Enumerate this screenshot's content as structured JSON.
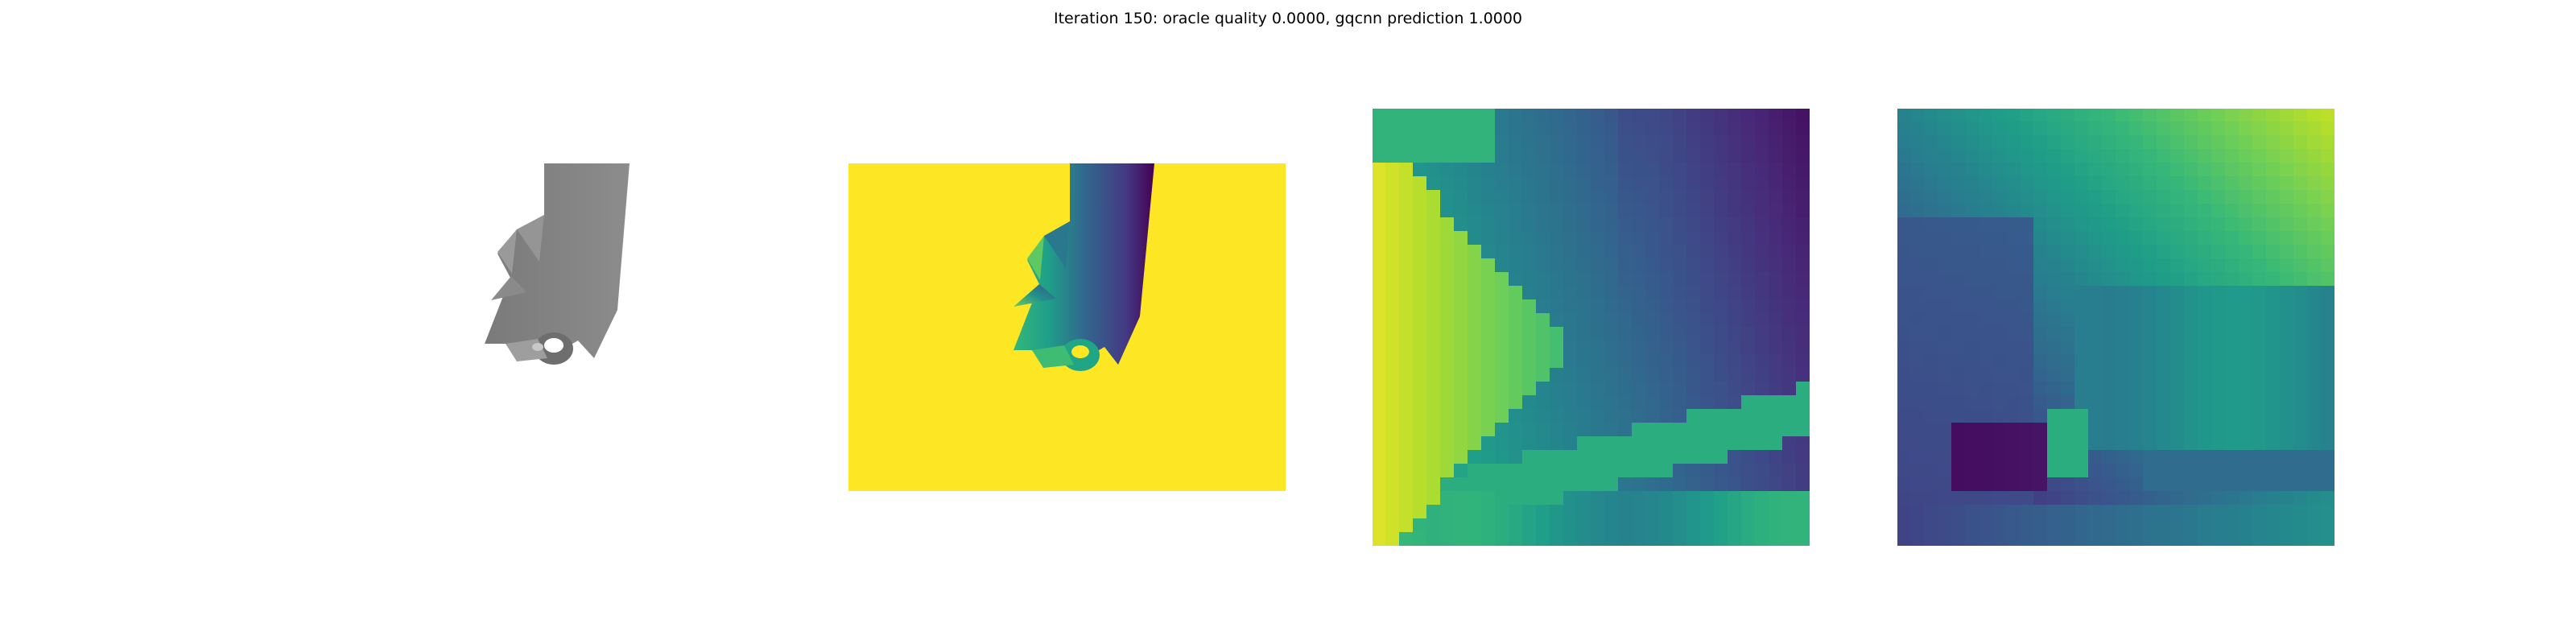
{
  "figure": {
    "title": "Iteration 150: oracle quality 0.0000, gqcnn prediction 1.0000"
  },
  "panels": [
    {
      "name": "rendered-object",
      "colormap": "gray"
    },
    {
      "name": "depth-image",
      "colormap": "viridis",
      "background": "#fde725"
    },
    {
      "name": "depth-crop-1",
      "colormap": "viridis"
    },
    {
      "name": "depth-crop-2",
      "colormap": "viridis"
    }
  ]
}
